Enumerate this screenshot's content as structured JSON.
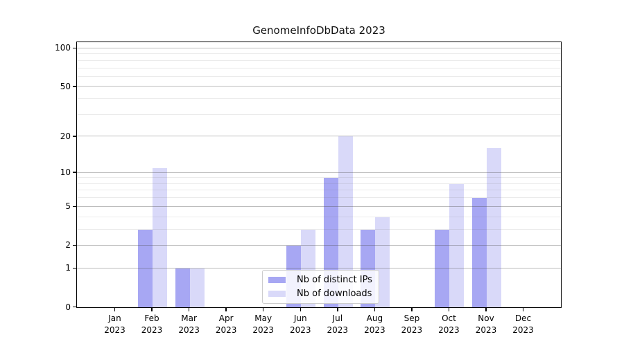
{
  "title": "GenomeInfoDbData 2023",
  "chart_data": {
    "type": "bar",
    "categories": [
      "Jan",
      "Feb",
      "Mar",
      "Apr",
      "May",
      "Jun",
      "Jul",
      "Aug",
      "Sep",
      "Oct",
      "Nov",
      "Dec"
    ],
    "year": "2023",
    "series": [
      {
        "name": "Nb of distinct IPs",
        "color": "#a7a7f3",
        "values": [
          0,
          3,
          1,
          0,
          0,
          2,
          9,
          3,
          0,
          3,
          6,
          0
        ]
      },
      {
        "name": "Nb of downloads",
        "color": "#d9d9f9",
        "values": [
          0,
          11,
          1,
          0,
          0,
          3,
          20,
          4,
          0,
          8,
          16,
          0
        ]
      }
    ],
    "xlabel": "",
    "ylabel": "",
    "y_scale": "log10(1+value)",
    "y_major_ticks": [
      0,
      1,
      2,
      5,
      10,
      20,
      50,
      100
    ],
    "y_minor_ticks": [
      3,
      4,
      6,
      7,
      8,
      9,
      30,
      40,
      60,
      70,
      80,
      90
    ],
    "ylim": [
      0,
      115
    ],
    "grid": "horizontal",
    "legend_position": "bottom-center"
  }
}
